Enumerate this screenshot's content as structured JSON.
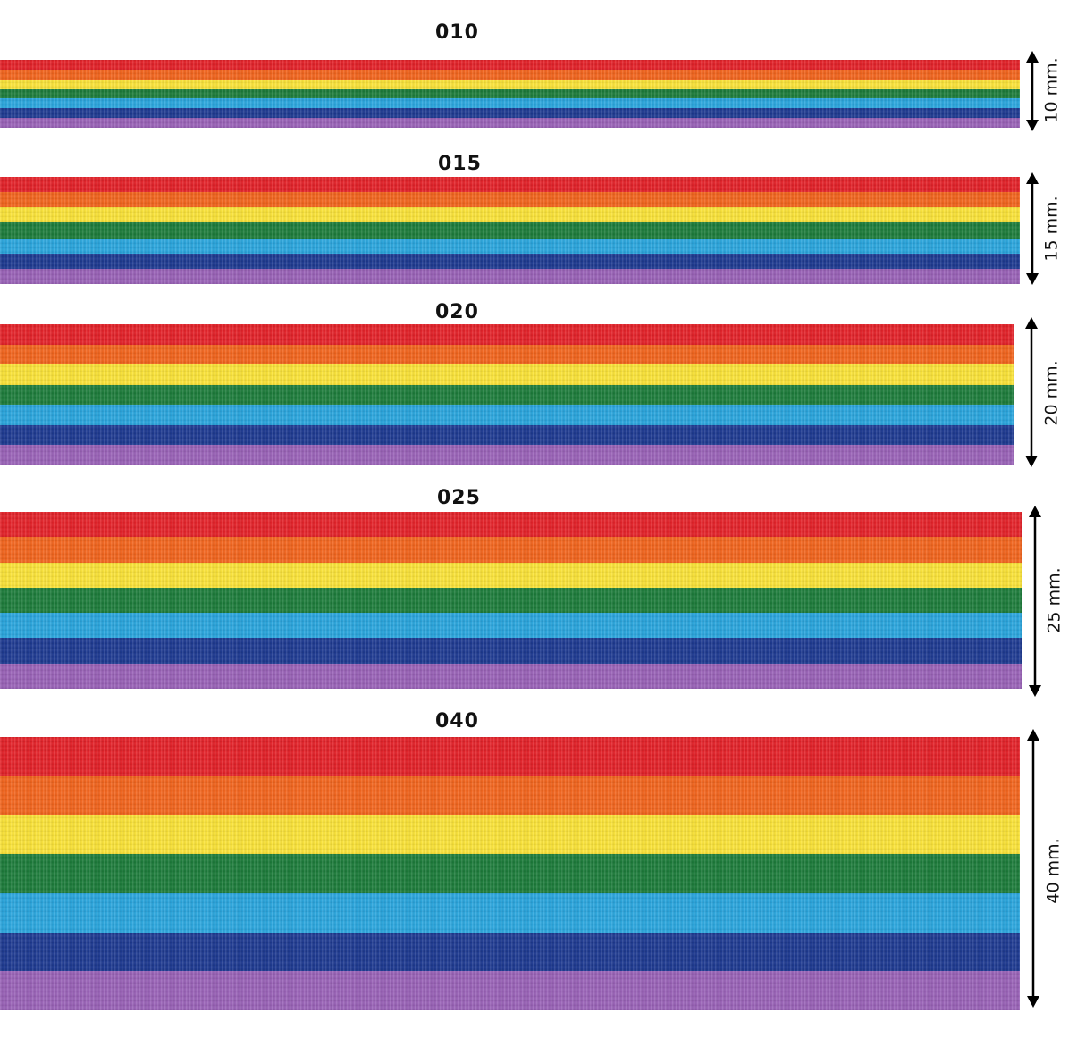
{
  "stripe_colors": [
    "#e4232a",
    "#f3661f",
    "#fbe43a",
    "#1e7d3c",
    "#2ba6de",
    "#1f3b92",
    "#9a63b8"
  ],
  "ribbons": [
    {
      "code": "010",
      "width_label": "10 mm."
    },
    {
      "code": "015",
      "width_label": "15 mm."
    },
    {
      "code": "020",
      "width_label": "20 mm."
    },
    {
      "code": "025",
      "width_label": "25 mm."
    },
    {
      "code": "040",
      "width_label": "40 mm."
    }
  ]
}
